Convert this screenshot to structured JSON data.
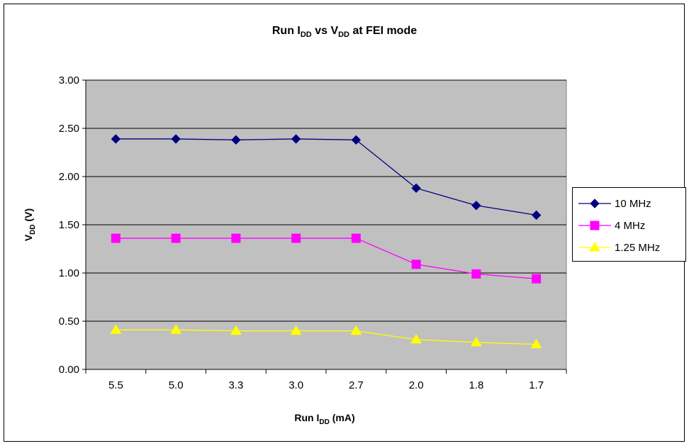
{
  "chart_data": {
    "type": "line",
    "title": {
      "main": "Run I",
      "sub": "DD",
      "rest": " vs V",
      "sub2": "DD",
      "tail": " at FEI mode"
    },
    "xlabel": {
      "main": "Run I",
      "sub": "DD",
      "tail": " (mA)"
    },
    "ylabel": {
      "main": "V",
      "sub": "DD",
      "tail": " (V)"
    },
    "categories": [
      "5.5",
      "5.0",
      "3.3",
      "3.0",
      "2.7",
      "2.0",
      "1.8",
      "1.7"
    ],
    "ylim": [
      0,
      3
    ],
    "yticks": [
      "0.00",
      "0.50",
      "1.00",
      "1.50",
      "2.00",
      "2.50",
      "3.00"
    ],
    "plot_background": "#c0c0c0",
    "grid": true,
    "legend_position": "right",
    "series": [
      {
        "name": "10 MHz",
        "color": "#000080",
        "marker": "diamond",
        "values": [
          2.39,
          2.39,
          2.38,
          2.39,
          2.38,
          1.88,
          1.7,
          1.6
        ]
      },
      {
        "name": "4 MHz",
        "color": "#ff00ff",
        "marker": "square",
        "values": [
          1.36,
          1.36,
          1.36,
          1.36,
          1.36,
          1.09,
          0.99,
          0.94
        ]
      },
      {
        "name": "1.25 MHz",
        "color": "#ffff00",
        "marker": "triangle",
        "values": [
          0.41,
          0.41,
          0.4,
          0.4,
          0.4,
          0.31,
          0.28,
          0.26
        ]
      }
    ]
  }
}
